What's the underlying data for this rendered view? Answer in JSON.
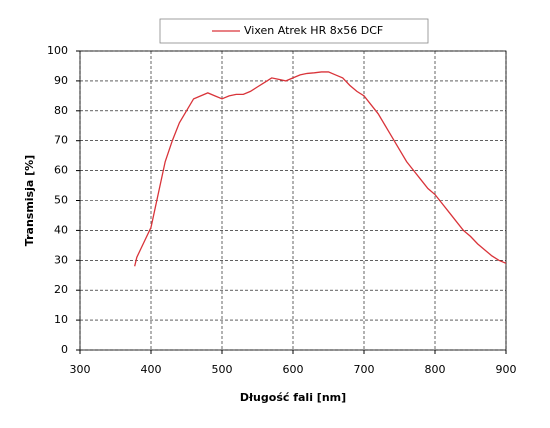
{
  "chart_data": {
    "type": "line",
    "x_label": "Długość fali [nm]",
    "y_label": "Transmisja [%]",
    "x": [
      377,
      380,
      390,
      400,
      410,
      420,
      430,
      440,
      450,
      460,
      470,
      480,
      490,
      500,
      510,
      520,
      530,
      540,
      550,
      560,
      570,
      580,
      590,
      600,
      610,
      620,
      630,
      640,
      650,
      660,
      670,
      680,
      690,
      700,
      710,
      720,
      730,
      740,
      750,
      760,
      770,
      780,
      790,
      800,
      810,
      820,
      830,
      840,
      850,
      860,
      870,
      880,
      890,
      900
    ],
    "series": [
      {
        "name": "Vixen Atrek HR 8x56 DCF",
        "color": "#d9343a",
        "values": [
          28,
          31,
          36,
          41,
          52,
          63,
          70,
          76,
          80,
          84,
          85,
          86,
          85,
          84,
          85,
          85.5,
          85.5,
          86.5,
          88,
          89.5,
          91,
          90.5,
          90,
          91,
          92,
          92.5,
          92.7,
          93,
          93,
          92,
          91,
          88.5,
          86.5,
          85,
          82,
          79,
          75,
          71,
          67,
          63,
          60,
          57,
          54,
          52,
          49,
          46,
          43,
          40,
          38,
          35.5,
          33.5,
          31.5,
          30,
          29
        ]
      }
    ],
    "xlim": [
      300,
      900
    ],
    "xticks": [
      300,
      400,
      500,
      600,
      700,
      800,
      900
    ],
    "ylim": [
      0,
      100
    ],
    "yticks": [
      0,
      10,
      20,
      30,
      40,
      50,
      60,
      70,
      80,
      90,
      100
    ],
    "grid": true
  }
}
